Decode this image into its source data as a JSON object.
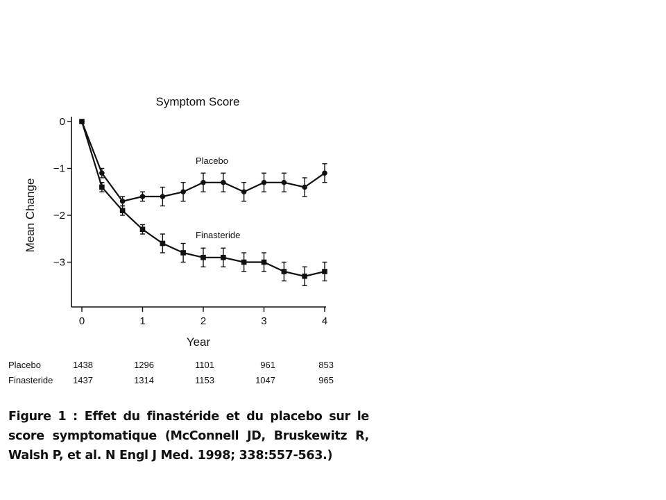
{
  "chart_data": {
    "type": "line",
    "title": "Symptom Score",
    "xlabel": "Year",
    "ylabel": "Mean Change",
    "xlim": [
      0,
      4
    ],
    "ylim": [
      -4,
      0
    ],
    "x_ticks": [
      "0",
      "1",
      "2",
      "3",
      "4"
    ],
    "y_ticks": [
      "0",
      "−1",
      "−2",
      "−3"
    ],
    "grid": false,
    "series": [
      {
        "name": "Placebo",
        "marker": "circle",
        "x": [
          0,
          0.33,
          0.67,
          1,
          1.33,
          1.67,
          2,
          2.33,
          2.67,
          3,
          3.33,
          3.67,
          4
        ],
        "values": [
          0,
          -1.1,
          -1.7,
          -1.6,
          -1.6,
          -1.5,
          -1.3,
          -1.3,
          -1.5,
          -1.3,
          -1.3,
          -1.4,
          -1.1
        ],
        "error": [
          0,
          0.1,
          0.1,
          0.1,
          0.2,
          0.2,
          0.2,
          0.2,
          0.2,
          0.2,
          0.2,
          0.2,
          0.2
        ]
      },
      {
        "name": "Finasteride",
        "marker": "square",
        "x": [
          0,
          0.33,
          0.67,
          1,
          1.33,
          1.67,
          2,
          2.33,
          2.67,
          3,
          3.33,
          3.67,
          4
        ],
        "values": [
          0,
          -1.4,
          -1.9,
          -2.3,
          -2.6,
          -2.8,
          -2.9,
          -2.9,
          -3.0,
          -3.0,
          -3.2,
          -3.3,
          -3.2
        ],
        "error": [
          0,
          0.1,
          0.1,
          0.1,
          0.2,
          0.2,
          0.2,
          0.2,
          0.2,
          0.2,
          0.2,
          0.2,
          0.2
        ]
      }
    ]
  },
  "table": {
    "rows": [
      {
        "name": "Placebo",
        "values": [
          "1438",
          "1296",
          "1101",
          "961",
          "853"
        ]
      },
      {
        "name": "Finasteride",
        "values": [
          "1437",
          "1314",
          "1153",
          "1047",
          "965"
        ]
      }
    ]
  },
  "caption": "Figure 1 : Effet du finastéride et du placebo sur le score symptomatique (McConnell JD, Bruskewitz R, Walsh P, et al. N Engl J Med. 1998; 338:557-563.)"
}
